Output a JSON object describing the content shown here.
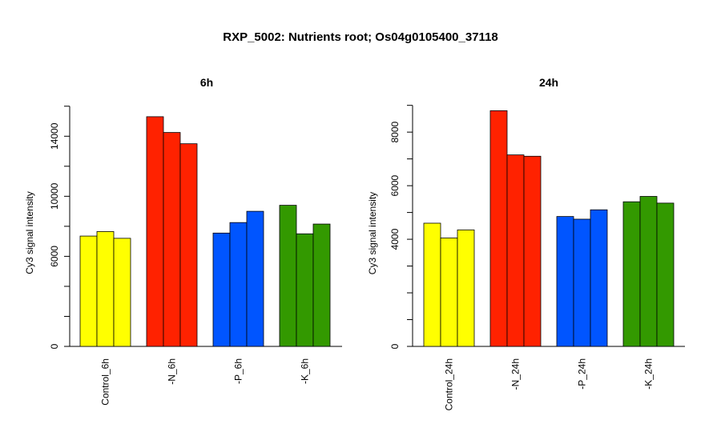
{
  "main_title": "RXP_5002: Nutrients root; Os04g0105400_37118",
  "colors": {
    "control": "#ffff00",
    "minusN": "#ff2200",
    "minusP": "#0055ff",
    "minusK": "#339900"
  },
  "chart_data": [
    {
      "type": "bar",
      "title": "6h",
      "ylabel": "Cy3 signal intensity",
      "ylim": [
        0,
        16200
      ],
      "yticks": [
        0,
        6000,
        10000,
        14000
      ],
      "yticks_minor": [
        2000,
        4000,
        8000,
        12000,
        16000
      ],
      "groups": [
        "Control_6h",
        "-N_6h",
        "-P_6h",
        "-K_6h"
      ],
      "group_colors": [
        "#ffff00",
        "#ff2200",
        "#0055ff",
        "#339900"
      ],
      "values": [
        [
          7350,
          7650,
          7200
        ],
        [
          15300,
          14250,
          13500
        ],
        [
          7550,
          8250,
          9000
        ],
        [
          9400,
          7500,
          8150
        ]
      ]
    },
    {
      "type": "bar",
      "title": "24h",
      "ylabel": "Cy3 signal intensity",
      "ylim": [
        0,
        9050
      ],
      "yticks": [
        0,
        4000,
        6000,
        8000
      ],
      "yticks_minor": [
        1000,
        2000,
        3000,
        5000,
        7000,
        9000
      ],
      "groups": [
        "Control_24h",
        "-N_24h",
        "-P_24h",
        "-K_24h"
      ],
      "group_colors": [
        "#ffff00",
        "#ff2200",
        "#0055ff",
        "#339900"
      ],
      "values": [
        [
          4600,
          4050,
          4350
        ],
        [
          8800,
          7150,
          7100
        ],
        [
          4850,
          4750,
          5100
        ],
        [
          5400,
          5600,
          5350
        ]
      ]
    }
  ]
}
